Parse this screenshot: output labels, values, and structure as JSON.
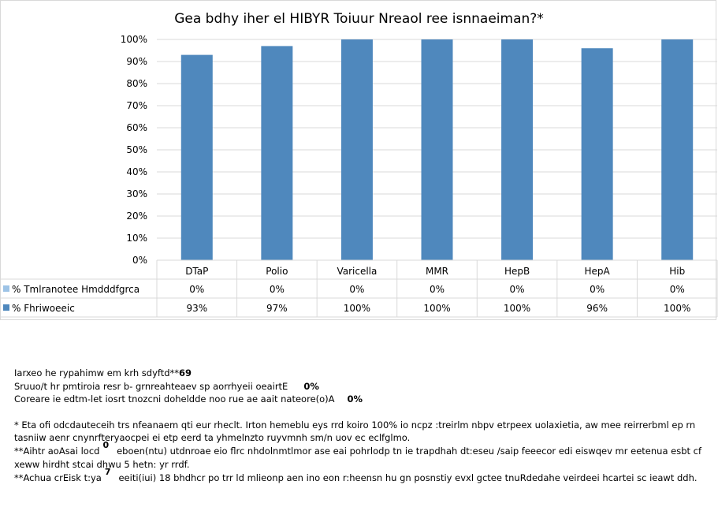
{
  "chart_data": {
    "type": "bar",
    "title": "Gea bdhy iher el HIBYR Toiuur Nreaol ree isnnaeiman?*",
    "categories": [
      "DTaP",
      "Polio",
      "Varicella",
      "MMR",
      "HepB",
      "HepA",
      "Hib"
    ],
    "ylim": [
      0,
      100
    ],
    "yticks": [
      "0%",
      "10%",
      "20%",
      "30%",
      "40%",
      "50%",
      "60%",
      "70%",
      "80%",
      "90%",
      "100%"
    ],
    "series": [
      {
        "name": "% Tmlranotee Hmdddfgrca",
        "color": "#9dc3e6",
        "values": [
          0,
          0,
          0,
          0,
          0,
          0,
          0
        ],
        "labels": [
          "0%",
          "0%",
          "0%",
          "0%",
          "0%",
          "0%",
          "0%"
        ]
      },
      {
        "name": "% Fhriwoeeic",
        "color": "#4f88bd",
        "values": [
          93,
          97,
          100,
          100,
          100,
          96,
          100
        ],
        "labels": [
          "93%",
          "97%",
          "100%",
          "100%",
          "100%",
          "96%",
          "100%"
        ]
      }
    ],
    "grid": true,
    "legend": "data table"
  },
  "notes": {
    "line1_text": "Iarxeo he rypahimw em krh sdyftd**",
    "line1_value": "69",
    "line2_text": "Sruuo/t hr pmtiroia resr b- grnreahteaev sp aorrhyeii oeairtE",
    "line2_value": "0%",
    "line3_text": "Coreare ie edtm-let iosrt tnozcni doheldde noo rue ae aait nateore(o)A",
    "line3_value": "0%",
    "footnote1": "* Eta ofi odcdauteceih trs nfeanaem qti eur rheclt. Irton hemeblu eys rrd koiro 100% io ncpz :treirlm nbpv etrpeex uolaxietia, aw mee reirrerbml ep rn tasniiw aenr cnynrfteryaocpei ei etp eerd ta yhmelnzto ruyvmnh sm/n uov ec eclfglmo.",
    "footnote2_lead": "**Aihtr aoAsai locd",
    "footnote2_sup": "0",
    "footnote2_text": "eboen(ntu) utdnroae eio flrc nhdolnmtlmor ase eai pohrlodp tn ie trapdhah dt:eseu /saip feeecor edi eiswqev mr eetenua esbt cf xeww hirdht stcai dhwu 5 hetn: yr rrdf.",
    "footnote3_lead": "**Achua crEisk t:ya",
    "footnote3_sup": "7",
    "footnote3_text": "eeiti(iui) 18 bhdhcr po trr ld mlieonp aen ino eon r:heensn hu gn posnstiy evxl gctee tnuRdedahe veirdeei hcartei sc ieawt ddh."
  }
}
